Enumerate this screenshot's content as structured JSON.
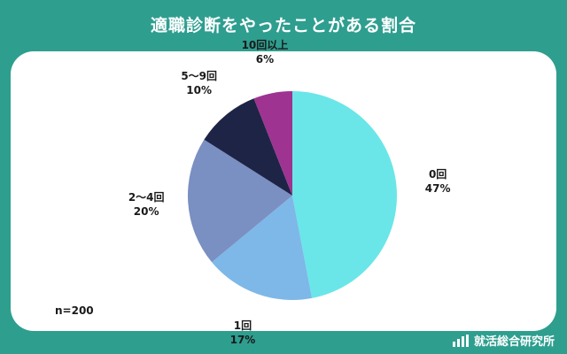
{
  "page": {
    "background_color": "#2e9e8f"
  },
  "header": {
    "title": "適職診断をやったことがある割合"
  },
  "chart_data": {
    "type": "pie",
    "title": "適職診断をやったことがある割合",
    "start_angle_deg": 0,
    "direction": "clockwise",
    "slices": [
      {
        "label": "0回",
        "value": 47,
        "value_label": "47%",
        "color": "#6ae6e8"
      },
      {
        "label": "1回",
        "value": 17,
        "value_label": "17%",
        "color": "#7db8e8"
      },
      {
        "label": "2〜4回",
        "value": 20,
        "value_label": "20%",
        "color": "#7a8fc2"
      },
      {
        "label": "5〜9回",
        "value": 10,
        "value_label": "10%",
        "color": "#1e2445"
      },
      {
        "label": "10回以上",
        "value": 6,
        "value_label": "6%",
        "color": "#9e3391"
      }
    ],
    "annotation": "n=200"
  },
  "footer": {
    "brand": "就活総合研究所",
    "icon": "bar-chart-icon"
  }
}
